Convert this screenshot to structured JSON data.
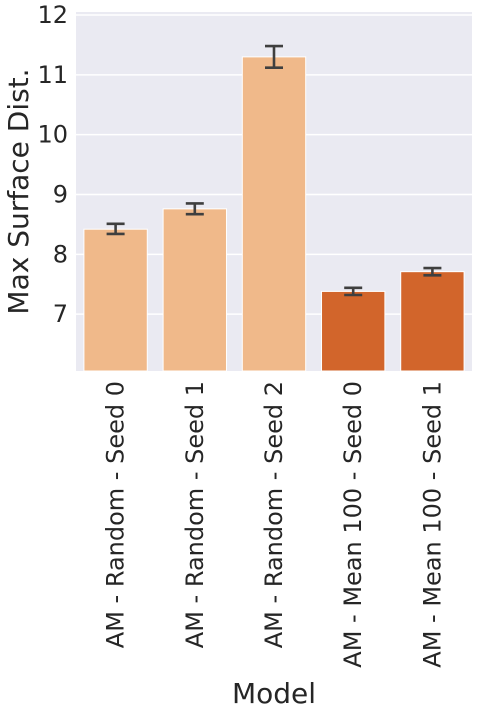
{
  "chart_data": {
    "type": "bar",
    "xlabel": "Model",
    "ylabel": "Max Surface Dist.",
    "categories": [
      "AM - Random - Seed 0",
      "AM - Random - Seed 1",
      "AM - Random - Seed 2",
      "AM - Mean 100 - Seed 0",
      "AM - Mean 100 - Seed 1"
    ],
    "values": [
      8.42,
      8.76,
      11.3,
      7.38,
      7.71
    ],
    "error_low": [
      8.34,
      8.67,
      11.12,
      7.32,
      7.65
    ],
    "error_high": [
      8.51,
      8.85,
      11.48,
      7.44,
      7.77
    ],
    "bar_colors": [
      "#F0B98A",
      "#F0B98A",
      "#F0B98A",
      "#D2652B",
      "#D2652B"
    ],
    "ylim": [
      6.05,
      12.05
    ],
    "yticks": [
      7,
      8,
      9,
      10,
      11,
      12
    ],
    "grid": true,
    "legend": "none",
    "background_color": "#EAEAF2",
    "grid_color": "#FFFFFF",
    "errorbar_color": "#3F3F3F"
  }
}
